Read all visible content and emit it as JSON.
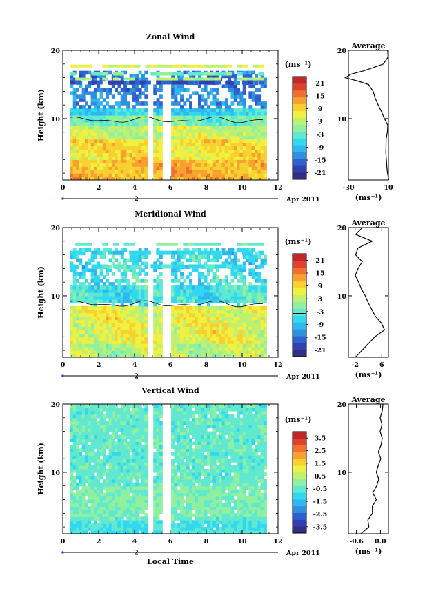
{
  "figure": {
    "x_axis_label": "Local Time",
    "x_ticks": [
      "0",
      "2",
      "4",
      "6",
      "8",
      "10",
      "12"
    ],
    "date_marker": "2",
    "date_label": "Apr 2011",
    "y_axis_label": "Height (km)",
    "y_ticks": [
      "10",
      "20"
    ],
    "average_title": "Average",
    "unit_label": "(ms⁻¹)",
    "colormap": [
      "#30307f",
      "#3040b0",
      "#3060d0",
      "#3090e0",
      "#30b8ee",
      "#30d8f0",
      "#60e8d0",
      "#90f0a0",
      "#c0f070",
      "#f0f040",
      "#f8d030",
      "#f8a030",
      "#f07030",
      "#e04030",
      "#c02828"
    ]
  },
  "chart_data": [
    {
      "type": "heatmap",
      "title": "Zonal Wind",
      "xlabel": "",
      "ylabel": "Height (km)",
      "xlim": [
        0,
        12
      ],
      "ylim": [
        1,
        20
      ],
      "colorbar": {
        "min": -24,
        "max": 24,
        "ticks": [
          "21",
          "15",
          "9",
          "3",
          "-3",
          "-9",
          "-15",
          "-21"
        ]
      },
      "data_gaps_hours": [
        [
          4.75,
          5.0
        ],
        [
          5.65,
          5.9
        ]
      ],
      "time_coverage_hours": [
        0.4,
        11.2
      ],
      "average_profile": {
        "xlim": [
          -30,
          10
        ],
        "xticks": [
          "-30",
          "10"
        ],
        "yticks": [
          "10",
          "20"
        ],
        "height_km": [
          1,
          2,
          3,
          4,
          5,
          6,
          7,
          8,
          9,
          10,
          11,
          12,
          13,
          14,
          15,
          15.5,
          16,
          16.5,
          17,
          17.5,
          18,
          19,
          20
        ],
        "value": [
          10,
          9,
          8,
          8,
          7,
          7,
          8,
          9,
          9,
          6,
          3,
          0,
          -3,
          -5,
          -10,
          -20,
          -33,
          -28,
          -15,
          -5,
          5,
          10,
          9
        ]
      }
    },
    {
      "type": "heatmap",
      "title": "Meridional Wind",
      "xlabel": "",
      "ylabel": "Height (km)",
      "xlim": [
        0,
        12
      ],
      "ylim": [
        1,
        20
      ],
      "colorbar": {
        "min": -24,
        "max": 24,
        "ticks": [
          "21",
          "15",
          "9",
          "3",
          "-3",
          "-9",
          "-15",
          "-21"
        ]
      },
      "data_gaps_hours": [
        [
          4.75,
          5.0
        ],
        [
          5.65,
          5.9
        ]
      ],
      "time_coverage_hours": [
        0.4,
        11.2
      ],
      "average_profile": {
        "xlim": [
          -4,
          8
        ],
        "xticks": [
          "-2",
          "6"
        ],
        "yticks": [
          "10",
          "20"
        ],
        "height_km": [
          1,
          2,
          3,
          4,
          5,
          6,
          7,
          8,
          9,
          10,
          11,
          12,
          13,
          14,
          15,
          16,
          17,
          18,
          19,
          20
        ],
        "value": [
          -2,
          0,
          2,
          4,
          7,
          6,
          4,
          3,
          2,
          1,
          0,
          -1,
          -2,
          -1,
          0,
          -2,
          -1,
          3,
          -2,
          0
        ]
      }
    },
    {
      "type": "heatmap",
      "title": "Vertical Wind",
      "xlabel": "Local Time",
      "ylabel": "Height (km)",
      "xlim": [
        0,
        12
      ],
      "ylim": [
        1,
        20
      ],
      "colorbar": {
        "min": -4,
        "max": 4,
        "ticks": [
          "3.5",
          "2.5",
          "1.5",
          "0.5",
          "-0.5",
          "-1.5",
          "-2.5",
          "-3.5"
        ]
      },
      "data_gaps_hours": [
        [
          4.75,
          5.0
        ],
        [
          5.65,
          5.9
        ]
      ],
      "time_coverage_hours": [
        0.4,
        11.2
      ],
      "average_profile": {
        "xlim": [
          -0.8,
          0.2
        ],
        "xticks": [
          "-0.6",
          "0.0"
        ],
        "yticks": [
          "10",
          "20"
        ],
        "height_km": [
          1,
          2,
          3,
          4,
          5,
          6,
          7,
          8,
          9,
          10,
          11,
          12,
          13,
          14,
          15,
          16,
          17,
          18,
          19,
          20
        ],
        "value": [
          -0.5,
          -0.3,
          -0.3,
          -0.2,
          -0.2,
          -0.1,
          -0.2,
          -0.1,
          -0.05,
          -0.1,
          -0.05,
          0,
          -0.05,
          0.02,
          0.05,
          -0.02,
          0.05,
          0,
          0.05,
          0.05
        ]
      }
    }
  ]
}
